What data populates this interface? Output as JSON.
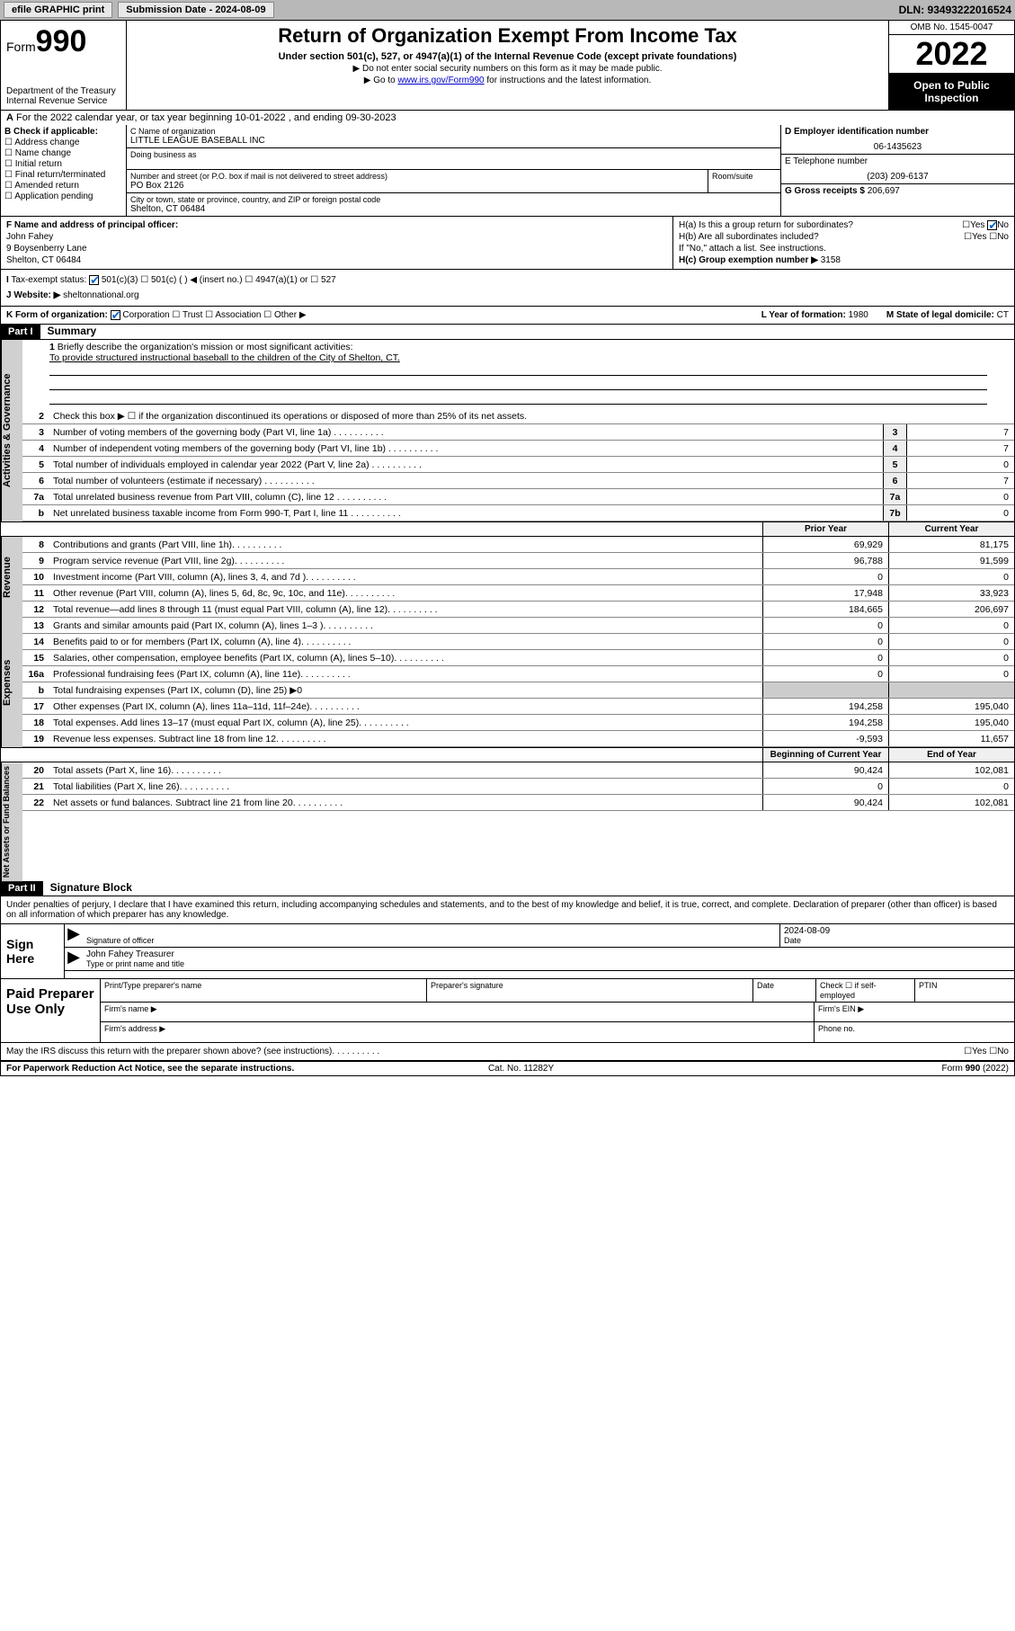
{
  "topbar": {
    "efile": "efile GRAPHIC print",
    "submission_label": "Submission Date - 2024-08-09",
    "dln": "DLN: 93493222016524"
  },
  "header": {
    "form_word": "Form",
    "form_num": "990",
    "dept": "Department of the Treasury",
    "irs": "Internal Revenue Service",
    "title": "Return of Organization Exempt From Income Tax",
    "sub": "Under section 501(c), 527, or 4947(a)(1) of the Internal Revenue Code (except private foundations)",
    "note1": "▶ Do not enter social security numbers on this form as it may be made public.",
    "note2_pre": "▶ Go to ",
    "note2_link": "www.irs.gov/Form990",
    "note2_post": " for instructions and the latest information.",
    "omb": "OMB No. 1545-0047",
    "year": "2022",
    "inspect": "Open to Public Inspection"
  },
  "periodA": "For the 2022 calendar year, or tax year beginning 10-01-2022   , and ending 09-30-2023",
  "sectB": {
    "title": "B Check if applicable:",
    "items": [
      "Address change",
      "Name change",
      "Initial return",
      "Final return/terminated",
      "Amended return",
      "Application pending"
    ]
  },
  "sectC": {
    "name_lbl": "C Name of organization",
    "name": "LITTLE LEAGUE BASEBALL INC",
    "dba_lbl": "Doing business as",
    "street_lbl": "Number and street (or P.O. box if mail is not delivered to street address)",
    "room_lbl": "Room/suite",
    "street": "PO Box 2126",
    "city_lbl": "City or town, state or province, country, and ZIP or foreign postal code",
    "city": "Shelton, CT  06484"
  },
  "sectD": {
    "ein_lbl": "D Employer identification number",
    "ein": "06-1435623",
    "tel_lbl": "E Telephone number",
    "tel": "(203) 209-6137",
    "gross_lbl": "G Gross receipts $",
    "gross": "206,697"
  },
  "sectF": {
    "lbl": "F Name and address of principal officer:",
    "name": "John Fahey",
    "addr1": "9 Boysenberry Lane",
    "addr2": "Shelton, CT  06484"
  },
  "sectH": {
    "a": "H(a)  Is this a group return for subordinates?",
    "b": "H(b)  Are all subordinates included?",
    "b_note": "If \"No,\" attach a list. See instructions.",
    "c_lbl": "H(c)  Group exemption number ▶",
    "c_val": "3158"
  },
  "sectI": {
    "lbl": "Tax-exempt status:",
    "opt1": "501(c)(3)",
    "opt2": "501(c) (  ) ◀ (insert no.)",
    "opt3": "4947(a)(1) or",
    "opt4": "527"
  },
  "sectJ": {
    "lbl": "Website: ▶",
    "val": "sheltonnational.org"
  },
  "sectK": {
    "lbl": "K Form of organization:",
    "o1": "Corporation",
    "o2": "Trust",
    "o3": "Association",
    "o4": "Other ▶"
  },
  "sectL": {
    "lbl": "L Year of formation:",
    "val": "1980"
  },
  "sectM": {
    "lbl": "M State of legal domicile:",
    "val": "CT"
  },
  "part1": {
    "hdr": "Part I",
    "title": "Summary"
  },
  "summary": {
    "l1_lbl": "Briefly describe the organization's mission or most significant activities:",
    "l1_txt": "To provide structured instructional baseball to the children of the City of Shelton, CT.",
    "l2": "Check this box ▶ ☐  if the organization discontinued its operations or disposed of more than 25% of its net assets.",
    "rows_single": [
      {
        "n": "3",
        "t": "Number of voting members of the governing body (Part VI, line 1a)",
        "box": "3",
        "v": "7"
      },
      {
        "n": "4",
        "t": "Number of independent voting members of the governing body (Part VI, line 1b)",
        "box": "4",
        "v": "7"
      },
      {
        "n": "5",
        "t": "Total number of individuals employed in calendar year 2022 (Part V, line 2a)",
        "box": "5",
        "v": "0"
      },
      {
        "n": "6",
        "t": "Total number of volunteers (estimate if necessary)",
        "box": "6",
        "v": "7"
      },
      {
        "n": "7a",
        "t": "Total unrelated business revenue from Part VIII, column (C), line 12",
        "box": "7a",
        "v": "0"
      },
      {
        "n": "b",
        "t": "Net unrelated business taxable income from Form 990-T, Part I, line 11",
        "box": "7b",
        "v": "0"
      }
    ],
    "col_hdr1": "Prior Year",
    "col_hdr2": "Current Year",
    "revenue": [
      {
        "n": "8",
        "t": "Contributions and grants (Part VIII, line 1h)",
        "v1": "69,929",
        "v2": "81,175"
      },
      {
        "n": "9",
        "t": "Program service revenue (Part VIII, line 2g)",
        "v1": "96,788",
        "v2": "91,599"
      },
      {
        "n": "10",
        "t": "Investment income (Part VIII, column (A), lines 3, 4, and 7d )",
        "v1": "0",
        "v2": "0"
      },
      {
        "n": "11",
        "t": "Other revenue (Part VIII, column (A), lines 5, 6d, 8c, 9c, 10c, and 11e)",
        "v1": "17,948",
        "v2": "33,923"
      },
      {
        "n": "12",
        "t": "Total revenue—add lines 8 through 11 (must equal Part VIII, column (A), line 12)",
        "v1": "184,665",
        "v2": "206,697"
      }
    ],
    "expenses": [
      {
        "n": "13",
        "t": "Grants and similar amounts paid (Part IX, column (A), lines 1–3 )",
        "v1": "0",
        "v2": "0"
      },
      {
        "n": "14",
        "t": "Benefits paid to or for members (Part IX, column (A), line 4)",
        "v1": "0",
        "v2": "0"
      },
      {
        "n": "15",
        "t": "Salaries, other compensation, employee benefits (Part IX, column (A), lines 5–10)",
        "v1": "0",
        "v2": "0"
      },
      {
        "n": "16a",
        "t": "Professional fundraising fees (Part IX, column (A), line 11e)",
        "v1": "0",
        "v2": "0"
      },
      {
        "n": "b",
        "t": "Total fundraising expenses (Part IX, column (D), line 25) ▶0",
        "grey": true
      },
      {
        "n": "17",
        "t": "Other expenses (Part IX, column (A), lines 11a–11d, 11f–24e)",
        "v1": "194,258",
        "v2": "195,040"
      },
      {
        "n": "18",
        "t": "Total expenses. Add lines 13–17 (must equal Part IX, column (A), line 25)",
        "v1": "194,258",
        "v2": "195,040"
      },
      {
        "n": "19",
        "t": "Revenue less expenses. Subtract line 18 from line 12",
        "v1": "-9,593",
        "v2": "11,657"
      }
    ],
    "na_hdr1": "Beginning of Current Year",
    "na_hdr2": "End of Year",
    "netassets": [
      {
        "n": "20",
        "t": "Total assets (Part X, line 16)",
        "v1": "90,424",
        "v2": "102,081"
      },
      {
        "n": "21",
        "t": "Total liabilities (Part X, line 26)",
        "v1": "0",
        "v2": "0"
      },
      {
        "n": "22",
        "t": "Net assets or fund balances. Subtract line 21 from line 20",
        "v1": "90,424",
        "v2": "102,081"
      }
    ]
  },
  "vtabs": {
    "gov": "Activities & Governance",
    "rev": "Revenue",
    "exp": "Expenses",
    "na": "Net Assets or Fund Balances"
  },
  "part2": {
    "hdr": "Part II",
    "title": "Signature Block"
  },
  "sig": {
    "decl": "Under penalties of perjury, I declare that I have examined this return, including accompanying schedules and statements, and to the best of my knowledge and belief, it is true, correct, and complete. Declaration of preparer (other than officer) is based on all information of which preparer has any knowledge.",
    "sign_here": "Sign Here",
    "sig_officer": "Signature of officer",
    "date_lbl": "Date",
    "date_val": "2024-08-09",
    "name_title": "John Fahey  Treasurer",
    "type_name": "Type or print name and title",
    "paid": "Paid Preparer Use Only",
    "prep_name": "Print/Type preparer's name",
    "prep_sig": "Preparer's signature",
    "prep_date": "Date",
    "check_self": "Check ☐ if self-employed",
    "ptin": "PTIN",
    "firm_name": "Firm's name    ▶",
    "firm_ein": "Firm's EIN ▶",
    "firm_addr": "Firm's address ▶",
    "phone": "Phone no."
  },
  "discuss": "May the IRS discuss this return with the preparer shown above? (see instructions)",
  "footer": {
    "pra": "For Paperwork Reduction Act Notice, see the separate instructions.",
    "cat": "Cat. No. 11282Y",
    "form": "Form 990 (2022)"
  },
  "yes": "Yes",
  "no": "No"
}
